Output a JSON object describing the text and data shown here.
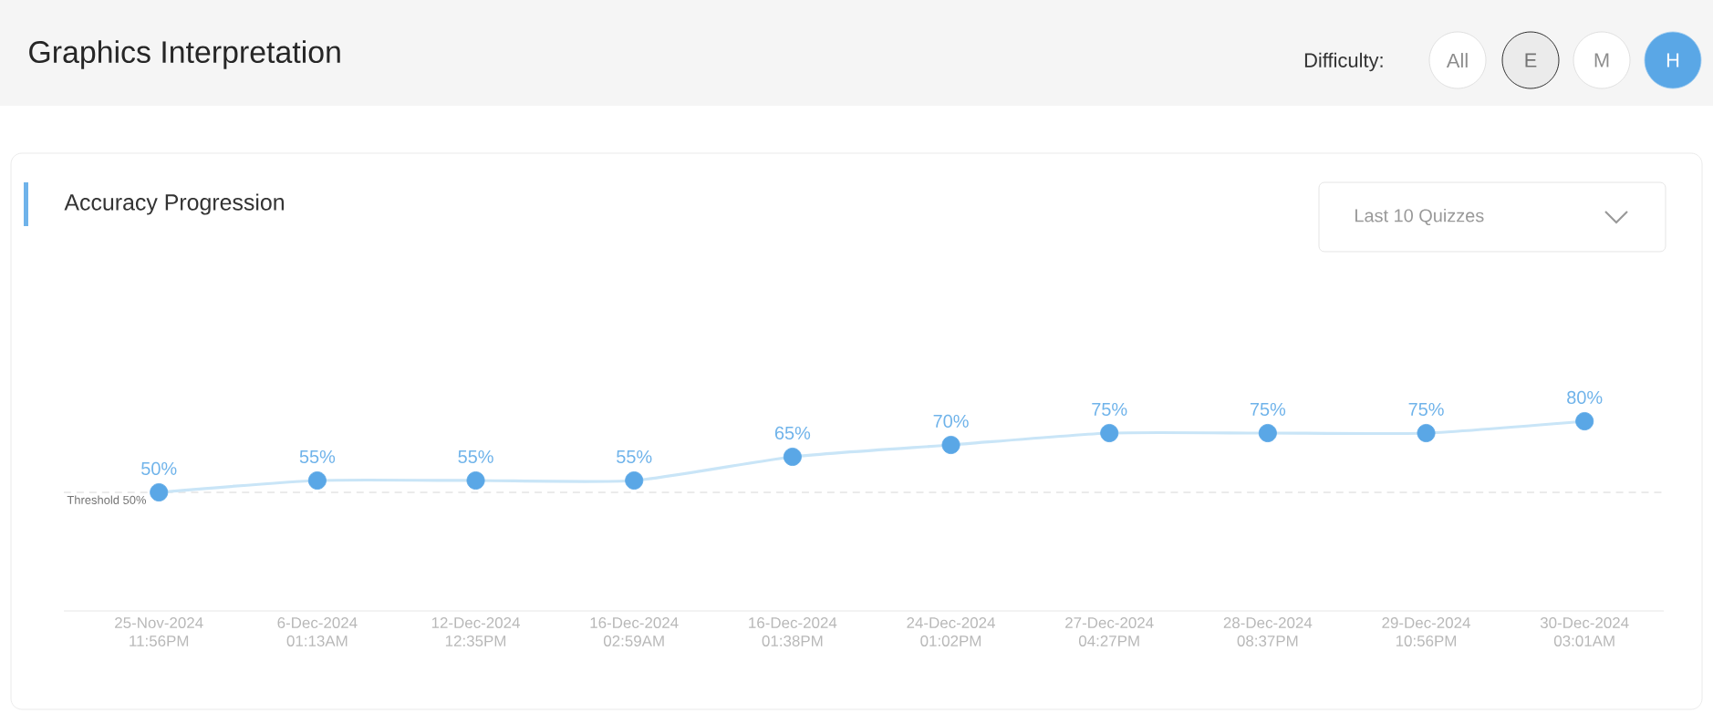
{
  "chart_data": {
    "type": "line",
    "title": "Graphics Interpretation",
    "subtitle": "Accuracy Progression",
    "categories": [
      "25-Nov-2024 11:56PM",
      "6-Dec-2024 01:13AM",
      "12-Dec-2024 12:35PM",
      "16-Dec-2024 02:59AM",
      "16-Dec-2024 01:38PM",
      "24-Dec-2024 01:02PM",
      "27-Dec-2024 04:27PM",
      "28-Dec-2024 08:37PM",
      "29-Dec-2024 10:56PM",
      "30-Dec-2024 03:01AM"
    ],
    "series": [
      {
        "color": "#c9e5f7",
        "values": [
          50,
          55,
          55,
          55,
          65,
          70,
          75,
          75,
          75,
          80
        ],
        "value_labels": [
          "50%",
          "55%",
          "55%",
          "55%",
          "65%",
          "70%",
          "75%",
          "75%",
          "75%",
          "80%"
        ]
      }
    ],
    "marker": "circle",
    "line_style": "solid",
    "ref_lines": [
      {
        "axis": "y",
        "value": 50,
        "label": "Threshold 50%",
        "color": "#cccccc",
        "line_style": "dashed"
      }
    ],
    "annotations": [
      "Difficulty:",
      "All",
      "E",
      "M",
      "H",
      "Last 10 Quizzes"
    ]
  }
}
